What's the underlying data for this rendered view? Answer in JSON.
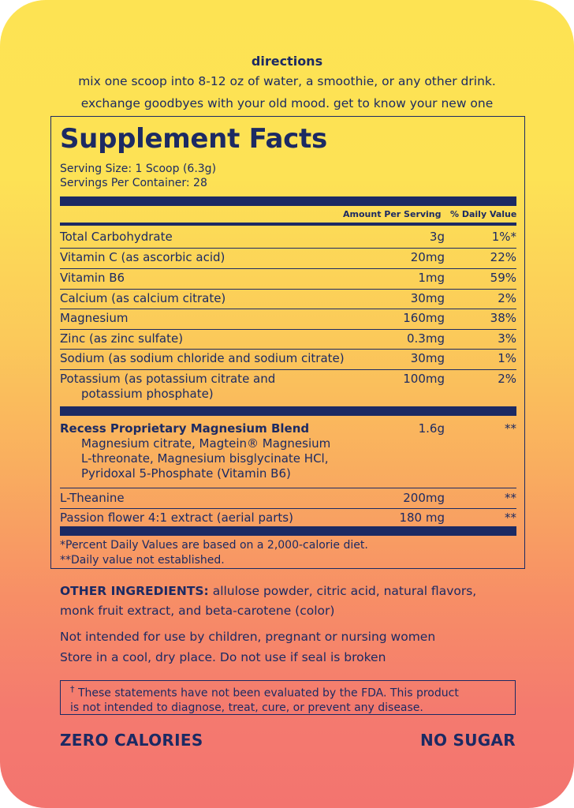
{
  "directions": {
    "title": "directions",
    "line1": "mix one scoop into 8-12 oz of water, a smoothie, or any other drink.",
    "line2": "exchange goodbyes with your old mood. get to know your new one"
  },
  "facts": {
    "title": "Supplement Facts",
    "serving_size": "Serving Size: 1 Scoop (6.3g)",
    "servings_per_container": "Servings Per Container: 28",
    "header_amount": "Amount Per Serving",
    "header_dv": "% Daily Value",
    "rows": [
      {
        "name": "Total Carbohydrate",
        "amount": "3g",
        "dv": "1%*"
      },
      {
        "name": "Vitamin C (as ascorbic acid)",
        "amount": "20mg",
        "dv": "22%"
      },
      {
        "name": "Vitamin B6",
        "amount": "1mg",
        "dv": "59%"
      },
      {
        "name": "Calcium (as calcium citrate)",
        "amount": "30mg",
        "dv": "2%"
      },
      {
        "name": "Magnesium",
        "amount": "160mg",
        "dv": "38%"
      },
      {
        "name": "Zinc (as zinc sulfate)",
        "amount": "0.3mg",
        "dv": "3%"
      },
      {
        "name": "Sodium (as sodium chloride and sodium citrate)",
        "amount": "30mg",
        "dv": "1%"
      },
      {
        "name_line1": "Potassium (as potassium citrate and",
        "name_line2": "potassium phosphate)",
        "amount": "100mg",
        "dv": "2%"
      }
    ],
    "blend": {
      "title": "Recess Proprietary Magnesium Blend",
      "amount": "1.6g",
      "dv": "**",
      "desc1": "Magnesium citrate, Magtein® Magnesium",
      "desc2": "L-threonate, Magnesium bisglycinate HCl,",
      "desc3": "Pyridoxal 5-Phosphate (Vitamin B6)"
    },
    "extra_rows": [
      {
        "name": "L-Theanine",
        "amount": "200mg",
        "dv": "**"
      },
      {
        "name": "Passion flower 4:1 extract (aerial parts)",
        "amount": "180 mg",
        "dv": "**"
      }
    ],
    "footnote1": "*Percent Daily Values are based on a 2,000-calorie diet.",
    "footnote2": "**Daily value not established."
  },
  "other": {
    "label": "OTHER INGREDIENTS:",
    "text1": " allulose powder, citric acid, natural flavors,",
    "text2": "monk fruit extract, and beta-carotene (color)"
  },
  "warnings": {
    "line1": "Not intended for use by children, pregnant or nursing women",
    "line2": "Store in a cool, dry place. Do not use if seal is broken"
  },
  "disclaimer": {
    "dagger": "†",
    "line1": " These statements have not been evaluated by the FDA. This product",
    "line2": "is not intended to diagnose, treat, cure, or prevent any disease."
  },
  "badges": {
    "left": "ZERO CALORIES",
    "right": "NO SUGAR"
  },
  "colors": {
    "text": "#1c2a63",
    "gradient_top": "#fde353",
    "gradient_bottom": "#f3746f"
  }
}
